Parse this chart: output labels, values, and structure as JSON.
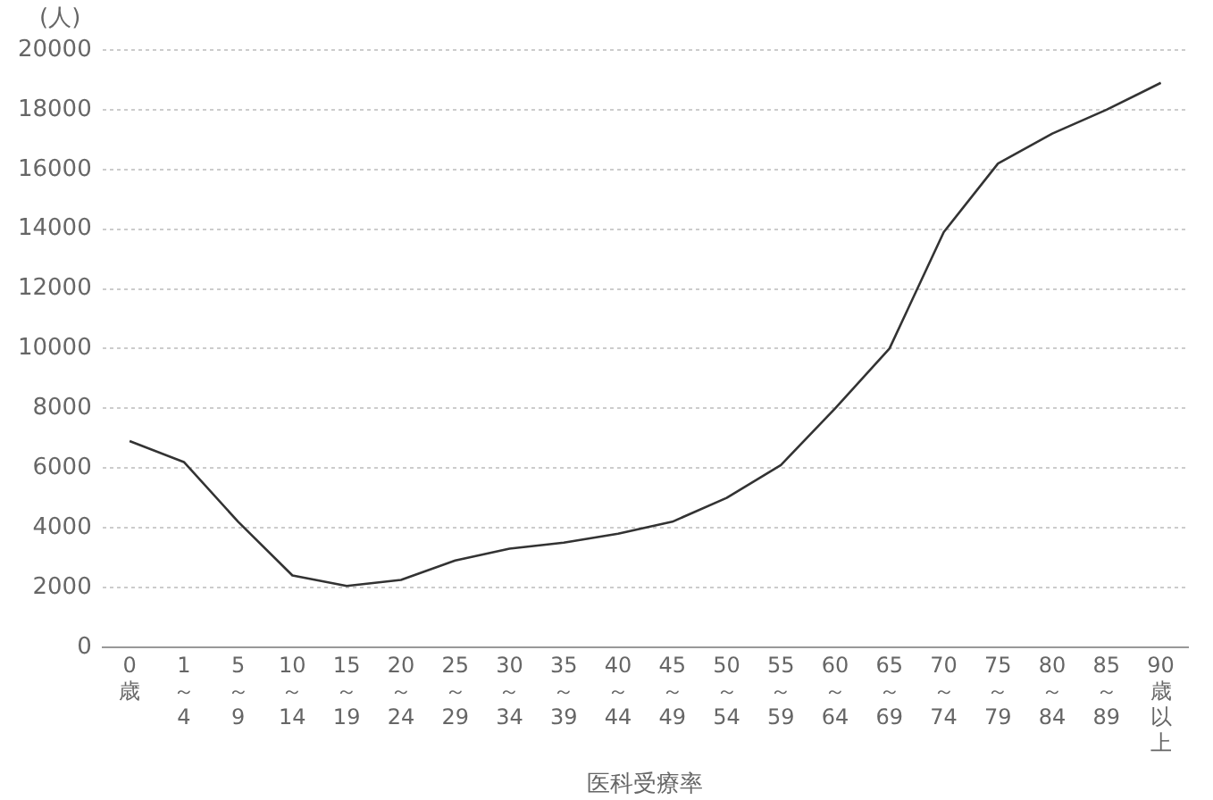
{
  "chart_data": {
    "type": "line",
    "ylabel": "(人)",
    "xlabel": "医科受療率",
    "categories": [
      "0歳",
      "1～4",
      "5～9",
      "10～14",
      "15～19",
      "20～24",
      "25～29",
      "30～34",
      "35～39",
      "40～44",
      "45～49",
      "50～54",
      "55～59",
      "60～64",
      "65～69",
      "70～74",
      "75～79",
      "80～84",
      "85～89",
      "90歳以上"
    ],
    "series": [
      {
        "color": "#333333",
        "values": [
          6900,
          6200,
          4200,
          2400,
          2050,
          2250,
          2900,
          3300,
          3500,
          3800,
          4200,
          5000,
          6100,
          8000,
          10000,
          13900,
          16200,
          17200,
          18000,
          18900
        ]
      }
    ],
    "ylim": [
      0,
      20000
    ],
    "yticks": [
      0,
      2000,
      4000,
      6000,
      8000,
      10000,
      12000,
      14000,
      16000,
      18000,
      20000
    ],
    "grid": "y",
    "legend": false,
    "marker": "none",
    "line_style": "solid"
  }
}
